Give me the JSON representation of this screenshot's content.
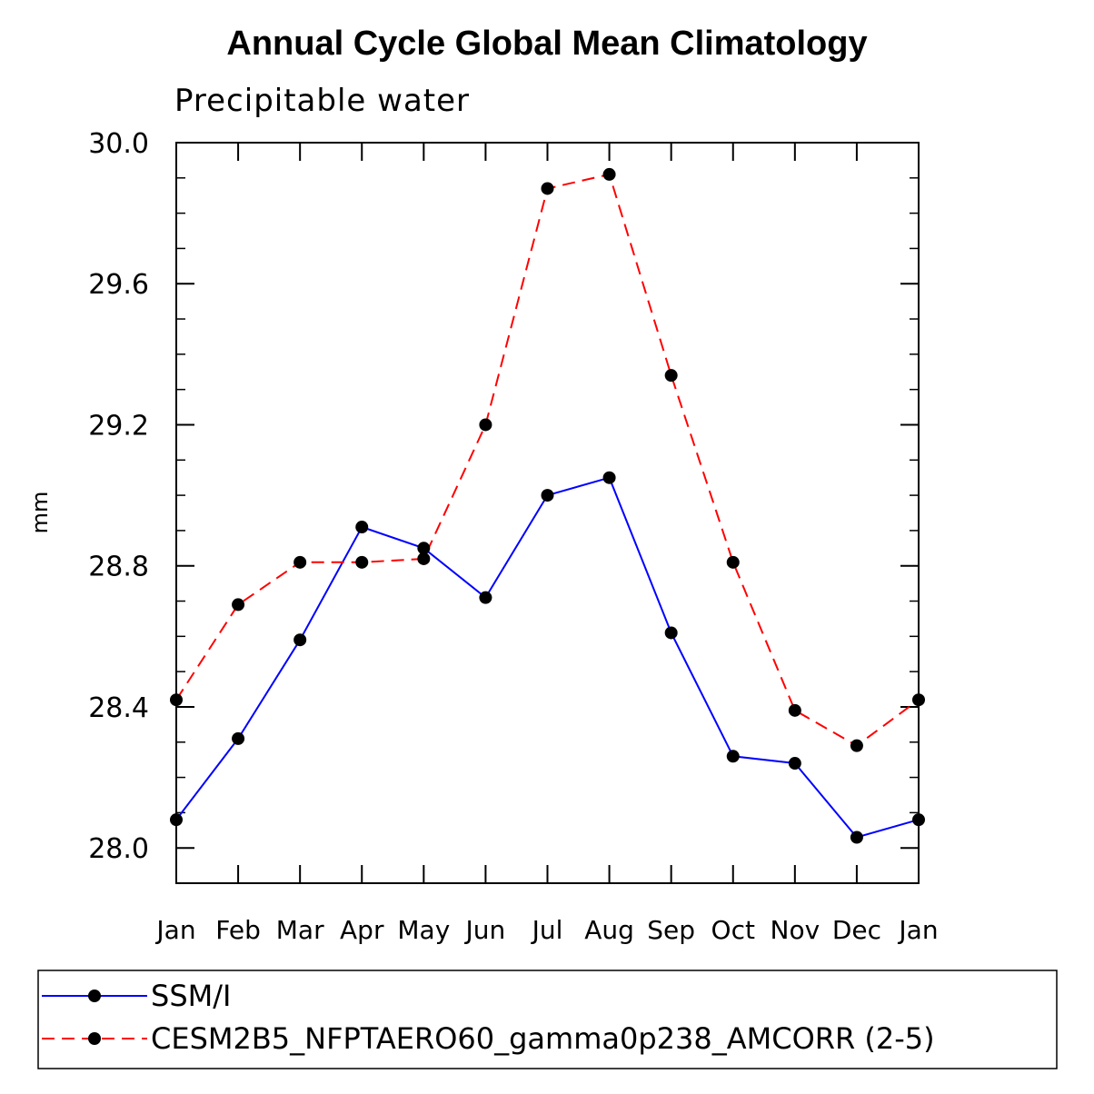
{
  "chart_data": {
    "type": "line",
    "title": "Annual Cycle Global Mean Climatology",
    "subtitle": "Precipitable water",
    "xlabel": "",
    "ylabel": "mm",
    "categories": [
      "Jan",
      "Feb",
      "Mar",
      "Apr",
      "May",
      "Jun",
      "Jul",
      "Aug",
      "Sep",
      "Oct",
      "Nov",
      "Dec",
      "Jan"
    ],
    "ylim": [
      27.9,
      30.0
    ],
    "yticks": [
      28.0,
      28.4,
      28.8,
      29.2,
      29.6,
      30.0
    ],
    "ytick_labels": [
      "28.0",
      "28.4",
      "28.8",
      "29.2",
      "29.6",
      "30.0"
    ],
    "series": [
      {
        "name": "SSM/I",
        "color": "#0000ff",
        "dash": "solid",
        "values": [
          28.08,
          28.31,
          28.59,
          28.91,
          28.85,
          28.71,
          29.0,
          29.05,
          28.61,
          28.26,
          28.24,
          28.03,
          28.08
        ]
      },
      {
        "name": "CESM2B5_NFPTAERO60_gamma0p238_AMCORR (2-5)",
        "color": "#ff0000",
        "dash": "dashed",
        "values": [
          28.42,
          28.69,
          28.81,
          28.81,
          28.82,
          29.2,
          29.87,
          29.91,
          29.34,
          28.81,
          28.39,
          28.29,
          28.42
        ]
      }
    ],
    "legend_position": "bottom"
  }
}
